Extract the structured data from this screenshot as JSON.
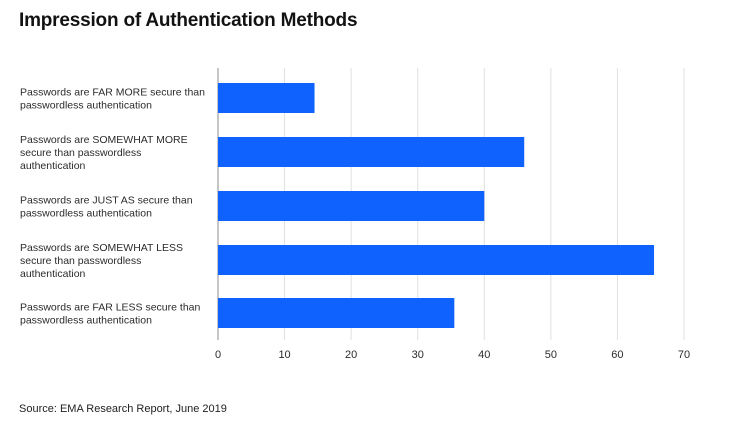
{
  "page": {
    "title": "Impression of Authentication Methods",
    "source": "Source: EMA Research Report, June 2019"
  },
  "chart_data": {
    "type": "bar",
    "orientation": "horizontal",
    "categories": [
      [
        "Passwords are FAR MORE secure than",
        "passwordless authentication"
      ],
      [
        "Passwords are SOMEWHAT MORE",
        "secure than passwordless",
        "authentication"
      ],
      [
        "Passwords are JUST AS secure than",
        "passwordless authentication"
      ],
      [
        "Passwords are SOMEWHAT LESS",
        "secure than passwordless",
        "authentication"
      ],
      [
        "Passwords are FAR LESS secure than",
        "passwordless authentication"
      ]
    ],
    "values": [
      14.5,
      46,
      40,
      65.5,
      35.5
    ],
    "xlim": [
      0,
      70
    ],
    "xticks": [
      0,
      10,
      20,
      30,
      40,
      50,
      60,
      70
    ],
    "grid": true,
    "legend": "none",
    "colors": {
      "bar": "#0f62fe",
      "grid": "#e0e0e0",
      "axis": "#8d8d8d",
      "text": "#2b2b2b"
    }
  }
}
